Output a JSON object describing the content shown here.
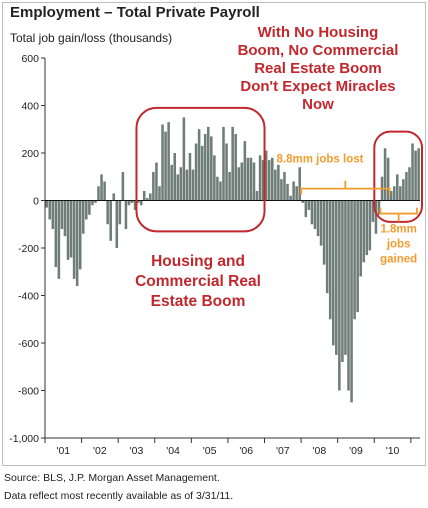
{
  "title": "Employment – Total Private Payroll",
  "subtitle": "Total job gain/loss (thousands)",
  "annotations": {
    "headline": [
      "With No Housing",
      "Boom, No Commercial",
      "Real Estate Boom",
      "Don't Expect Miracles",
      "Now"
    ],
    "boom_label": [
      "Housing and",
      "Commercial Real",
      "Estate Boom"
    ],
    "jobs_lost": "8.8mm jobs lost",
    "jobs_gained": [
      "1.8mm",
      "jobs",
      "gained"
    ]
  },
  "footer": {
    "source": "Source: BLS, J.P. Morgan Asset Management.",
    "note": "Data reflect most recently available as of 3/31/11."
  },
  "colors": {
    "bar": "#6f7d78",
    "highlight": "#c0282d",
    "annotation_orange": "#f39c2e",
    "axis": "#333333"
  },
  "chart_data": {
    "type": "bar",
    "frequency": "monthly",
    "start": "2001-01",
    "end": "2011-03",
    "ylim": [
      -1000,
      600
    ],
    "yticks": [
      -1000,
      -800,
      -600,
      -400,
      -200,
      0,
      200,
      400,
      600
    ],
    "ytick_labels": [
      "-1,000",
      "-800",
      "-600",
      "-400",
      "-200",
      "0",
      "200",
      "400",
      "600"
    ],
    "xtick_labels": [
      "'01",
      "'02",
      "'03",
      "'04",
      "'05",
      "'06",
      "'07",
      "'08",
      "'09",
      "'10"
    ],
    "values": [
      -30,
      -80,
      -120,
      -280,
      -330,
      -120,
      -150,
      -250,
      -240,
      -330,
      -360,
      -290,
      -140,
      -80,
      -60,
      -20,
      -10,
      60,
      110,
      80,
      -100,
      -170,
      30,
      -200,
      -100,
      120,
      -120,
      -20,
      -10,
      -40,
      -10,
      -20,
      40,
      10,
      30,
      120,
      160,
      60,
      320,
      290,
      330,
      150,
      200,
      110,
      140,
      350,
      130,
      200,
      130,
      240,
      300,
      230,
      280,
      310,
      270,
      190,
      100,
      80,
      310,
      240,
      120,
      310,
      280,
      140,
      160,
      250,
      180,
      180,
      160,
      40,
      190,
      170,
      210,
      170,
      180,
      130,
      150,
      90,
      120,
      70,
      20,
      80,
      60,
      140,
      -10,
      -70,
      -40,
      -100,
      -120,
      -150,
      -190,
      -270,
      -390,
      -500,
      -610,
      -650,
      -800,
      -680,
      -650,
      -800,
      -850,
      -500,
      -470,
      -320,
      -260,
      -230,
      -210,
      -90,
      -140,
      -60,
      100,
      220,
      180,
      40,
      60,
      110,
      60,
      90,
      120,
      140,
      240,
      210,
      220
    ]
  }
}
